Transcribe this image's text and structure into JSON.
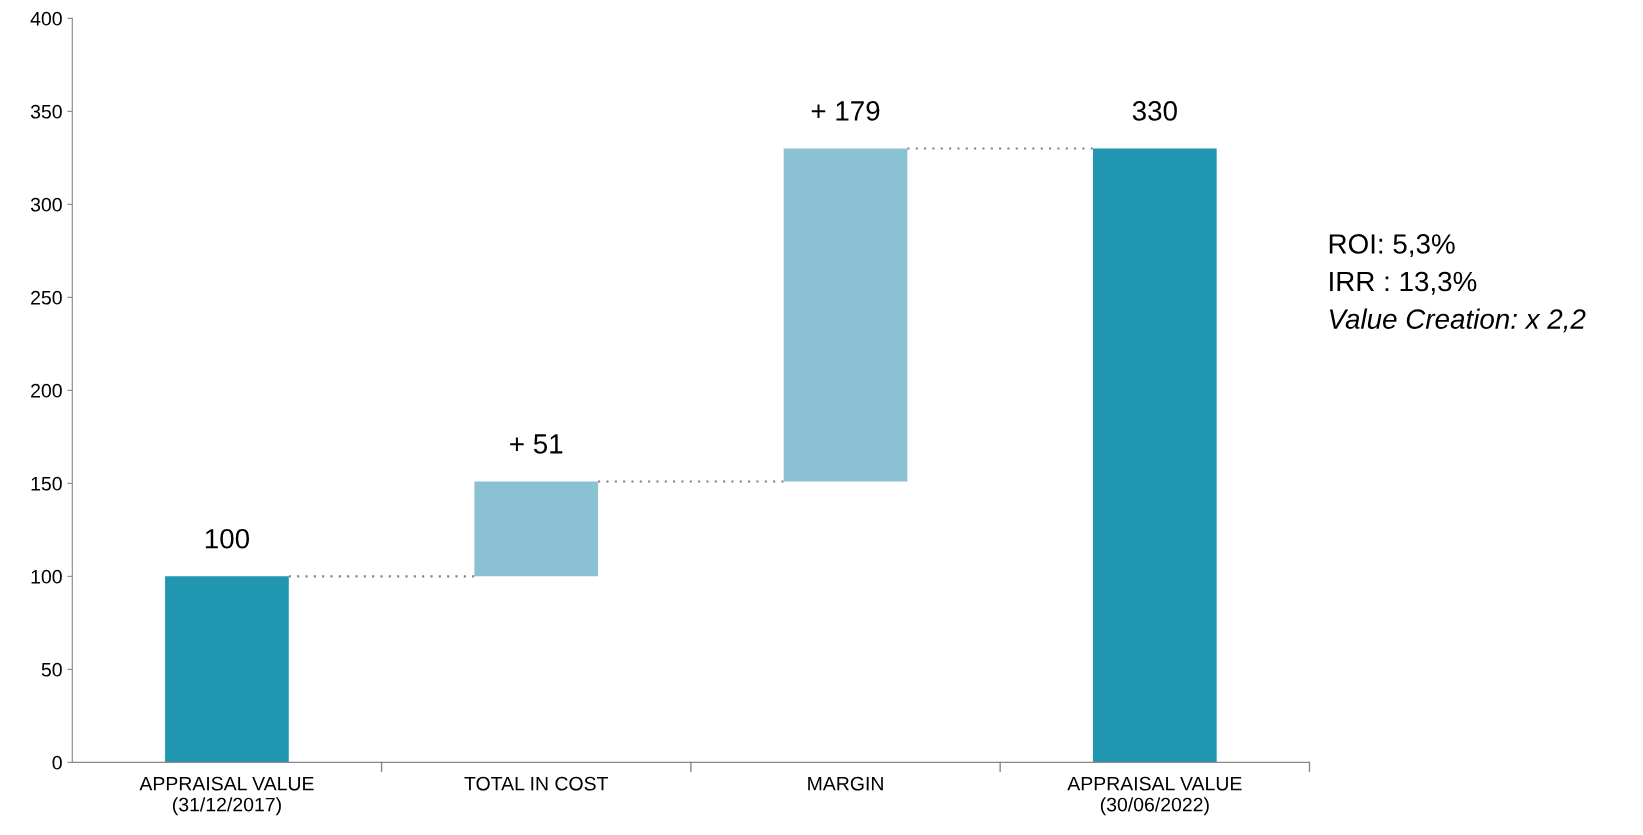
{
  "chart_data": {
    "type": "bar",
    "categories": [
      "APPRAISAL VALUE\n(31/12/2017)",
      "TOTAL IN COST",
      "MARGIN",
      "APPRAISAL VALUE\n(30/06/2022)"
    ],
    "values": [
      100,
      51,
      179,
      330
    ],
    "base": [
      0,
      100,
      151,
      0
    ],
    "colors": [
      "#2096b0",
      "#8bc2d3",
      "#8bc2d3",
      "#2096b0"
    ],
    "value_labels": [
      "100",
      "+ 51",
      "+ 179",
      "330"
    ],
    "ylim": [
      0,
      400
    ],
    "yticks": [
      0,
      50,
      100,
      150,
      200,
      250,
      300,
      350,
      400
    ],
    "grid": false,
    "legend": false,
    "annotations": [
      "ROI: 5,3%",
      "IRR : 13,3%",
      "Value Creation: x 2,2"
    ]
  }
}
